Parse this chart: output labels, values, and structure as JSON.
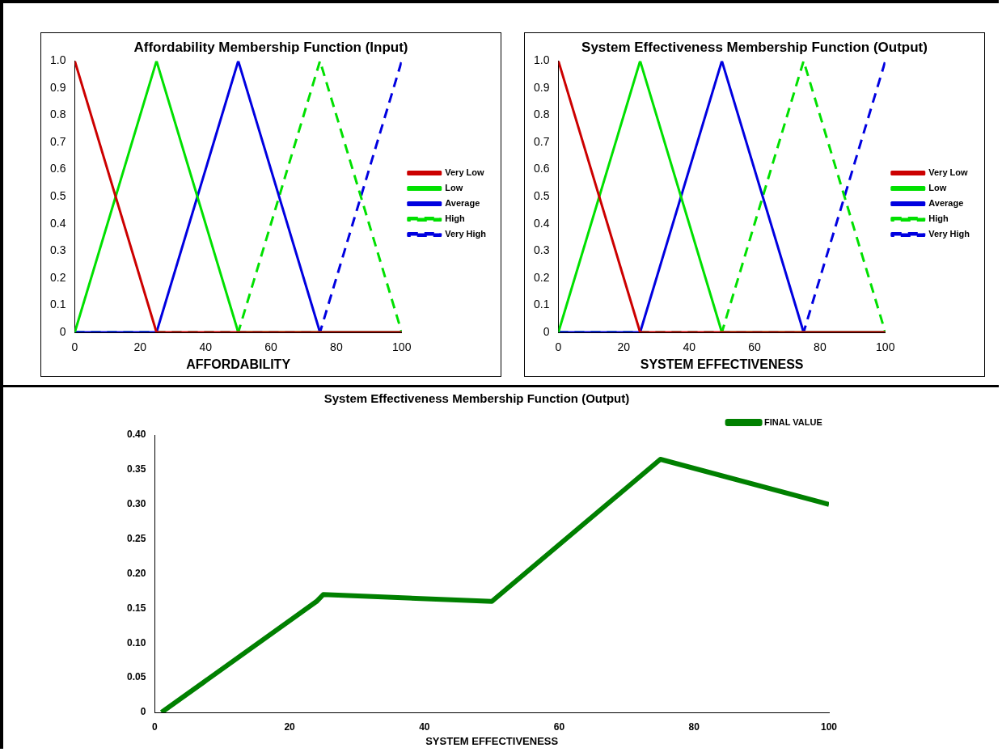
{
  "chart_data": [
    {
      "type": "line",
      "title": "Affordability Membership Function (Input)",
      "xlabel": "AFFORDABILITY",
      "xlim": [
        0,
        100
      ],
      "xticks": [
        0,
        20,
        40,
        60,
        80,
        100
      ],
      "ylim": [
        0,
        1
      ],
      "yticks": [
        0,
        0.1,
        0.2,
        0.3,
        0.4,
        0.5,
        0.6,
        0.7,
        0.8,
        0.9,
        {
          "value": 1,
          "label": "1.0"
        }
      ],
      "grid": false,
      "legend": "right",
      "marker": "none",
      "series": [
        {
          "name": "Very Low",
          "color": "#cc0000",
          "x": [
            0,
            25,
            100
          ],
          "values": [
            1,
            0,
            0
          ]
        },
        {
          "name": "Low",
          "color": "#00e000",
          "x": [
            0,
            25,
            50,
            100
          ],
          "values": [
            0,
            1,
            0,
            0
          ]
        },
        {
          "name": "Average",
          "color": "#0000e0",
          "x": [
            0,
            25,
            50,
            75,
            100
          ],
          "values": [
            0,
            0,
            1,
            0,
            0
          ]
        },
        {
          "name": "High",
          "color": "#00e000",
          "line_style": "dashed",
          "x": [
            0,
            50,
            75,
            100
          ],
          "values": [
            0,
            0,
            1,
            0
          ]
        },
        {
          "name": "Very High",
          "color": "#0000e0",
          "line_style": "dashed",
          "x": [
            0,
            75,
            100
          ],
          "values": [
            0,
            0,
            1
          ]
        }
      ]
    },
    {
      "type": "line",
      "title": "System Effectiveness Membership Function (Output)",
      "xlabel": "SYSTEM EFFECTIVENESS",
      "xlim": [
        0,
        100
      ],
      "xticks": [
        0,
        20,
        40,
        60,
        80,
        100
      ],
      "ylim": [
        0,
        1
      ],
      "yticks": [
        0,
        0.1,
        0.2,
        0.3,
        0.4,
        0.5,
        0.6,
        0.7,
        0.8,
        0.9,
        {
          "value": 1,
          "label": "1.0"
        }
      ],
      "grid": false,
      "legend": "right",
      "marker": "none",
      "series": [
        {
          "name": "Very Low",
          "color": "#cc0000",
          "x": [
            0,
            25,
            100
          ],
          "values": [
            1,
            0,
            0
          ]
        },
        {
          "name": "Low",
          "color": "#00e000",
          "x": [
            0,
            25,
            50,
            100
          ],
          "values": [
            0,
            1,
            0,
            0
          ]
        },
        {
          "name": "Average",
          "color": "#0000e0",
          "x": [
            0,
            25,
            50,
            75,
            100
          ],
          "values": [
            0,
            0,
            1,
            0,
            0
          ]
        },
        {
          "name": "High",
          "color": "#00e000",
          "line_style": "dashed",
          "x": [
            0,
            50,
            75,
            100
          ],
          "values": [
            0,
            0,
            1,
            0
          ]
        },
        {
          "name": "Very High",
          "color": "#0000e0",
          "line_style": "dashed",
          "x": [
            0,
            75,
            100
          ],
          "values": [
            0,
            0,
            1
          ]
        }
      ]
    },
    {
      "type": "line",
      "title": "System Effectiveness Membership Function (Output)",
      "xlabel": "SYSTEM EFFECTIVENESS",
      "xlim": [
        0,
        100
      ],
      "xticks": [
        0,
        20,
        40,
        60,
        80,
        100
      ],
      "ylim": [
        0,
        0.4
      ],
      "yticks": [
        0,
        0.05,
        {
          "value": 0.1,
          "label": "0.10"
        },
        0.15,
        {
          "value": 0.2,
          "label": "0.20"
        },
        0.25,
        {
          "value": 0.3,
          "label": "0.30"
        },
        0.35,
        {
          "value": 0.4,
          "label": "0.40"
        }
      ],
      "grid": false,
      "legend": "top right",
      "marker": "none",
      "series": [
        {
          "name": "FINAL VALUE",
          "color": "#008000",
          "x": [
            1,
            24,
            25,
            50,
            75,
            100
          ],
          "values": [
            0,
            0.16,
            0.17,
            0.16,
            0.365,
            0.3
          ]
        }
      ]
    }
  ]
}
